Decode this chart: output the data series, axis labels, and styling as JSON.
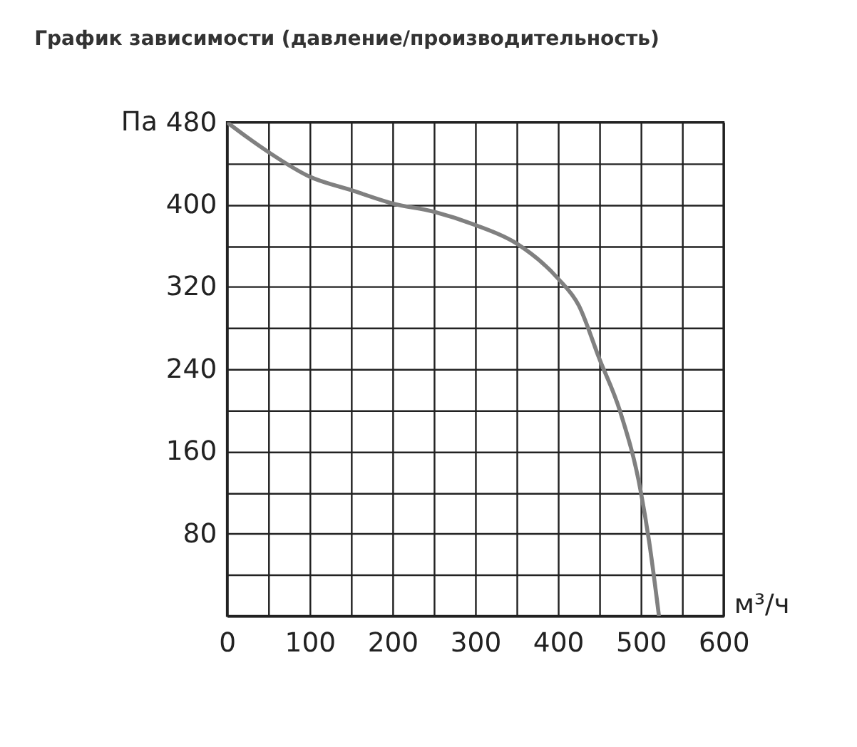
{
  "chart_data": {
    "type": "line",
    "title": "График зависимости (давление/производительность)",
    "xlabel": "м³/ч",
    "ylabel": "Па",
    "x": [
      0,
      25,
      50,
      100,
      150,
      200,
      250,
      300,
      350,
      400,
      425,
      450,
      475,
      500,
      510,
      522
    ],
    "series": [
      {
        "color": "#808080",
        "values": [
          480,
          465,
          451,
          427,
          414,
          401,
          393,
          380,
          362,
          328,
          302,
          250,
          199,
          121,
          73,
          0
        ]
      }
    ],
    "xlim": [
      0,
      600
    ],
    "ylim": [
      0,
      480
    ],
    "xticks": [
      0,
      {
        "value": 50,
        "label": null
      },
      100,
      {
        "value": 150,
        "label": null
      },
      200,
      {
        "value": 250,
        "label": null
      },
      300,
      {
        "value": 350,
        "label": null
      },
      400,
      {
        "value": 450,
        "label": null
      },
      500,
      {
        "value": 550,
        "label": null
      },
      600
    ],
    "yticks": [
      {
        "value": 0,
        "label": null
      },
      {
        "value": 40,
        "label": null
      },
      80,
      {
        "value": 120,
        "label": null
      },
      160,
      {
        "value": 200,
        "label": null
      },
      240,
      {
        "value": 280,
        "label": null
      },
      320,
      {
        "value": 360,
        "label": null
      },
      400,
      {
        "value": 440,
        "label": null
      },
      480
    ],
    "grid": true,
    "marker": "none",
    "line_style": "solid"
  }
}
